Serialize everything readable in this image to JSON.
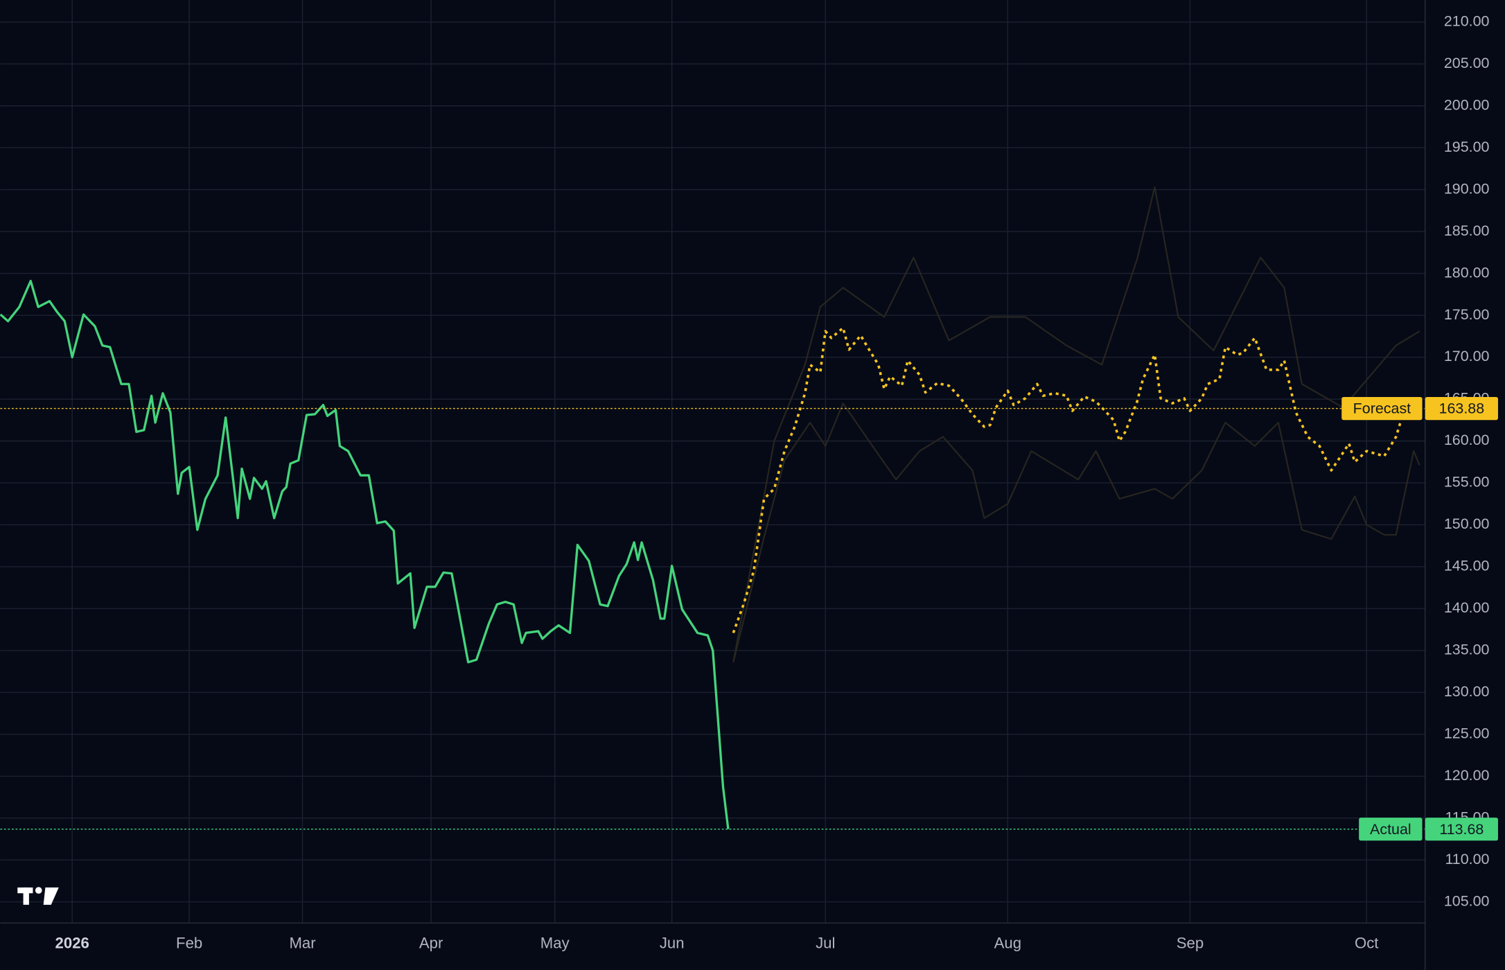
{
  "chart_data": {
    "type": "line",
    "xlim": [
      -19,
      283
    ],
    "ylim": [
      102.48,
      212.63
    ],
    "xticks": [
      {
        "value": 0,
        "label": "2026"
      },
      {
        "value": 31,
        "label": "Feb"
      },
      {
        "value": 59,
        "label": "Mar"
      },
      {
        "value": 90,
        "label": "Apr"
      },
      {
        "value": 120,
        "label": "May"
      },
      {
        "value": 151,
        "label": "Jun"
      },
      {
        "value": 181,
        "label": "Jul"
      },
      {
        "value": 212,
        "label": "Aug"
      },
      {
        "value": 243,
        "label": "Sep"
      },
      {
        "value": 273,
        "label": "Oct"
      }
    ],
    "yticks": [
      {
        "value": 105,
        "label": "105.00"
      },
      {
        "value": 110,
        "label": "110.00"
      },
      {
        "value": 115,
        "label": "115.00"
      },
      {
        "value": 120,
        "label": "120.00"
      },
      {
        "value": 125,
        "label": "125.00"
      },
      {
        "value": 130,
        "label": "130.00"
      },
      {
        "value": 135,
        "label": "135.00"
      },
      {
        "value": 140,
        "label": "140.00"
      },
      {
        "value": 145,
        "label": "145.00"
      },
      {
        "value": 150,
        "label": "150.00"
      },
      {
        "value": 155,
        "label": "155.00"
      },
      {
        "value": 160,
        "label": "160.00"
      },
      {
        "value": 165,
        "label": "165.00"
      },
      {
        "value": 170,
        "label": "170.00"
      },
      {
        "value": 175,
        "label": "175.00"
      },
      {
        "value": 180,
        "label": "180.00"
      },
      {
        "value": 185,
        "label": "185.00"
      },
      {
        "value": 190,
        "label": "190.00"
      },
      {
        "value": 195,
        "label": "195.00"
      },
      {
        "value": 200,
        "label": "200.00"
      },
      {
        "value": 205,
        "label": "205.00"
      },
      {
        "value": 210,
        "label": "210.00"
      }
    ],
    "grid": true,
    "series": [
      {
        "name": "Actual",
        "color": "#45d47c",
        "style": "solid",
        "x": [
          -19,
          -17,
          -14,
          -11,
          -9,
          -6,
          -4,
          -2,
          0,
          3,
          6,
          8,
          10,
          13,
          15,
          17,
          19,
          21,
          22,
          24,
          26,
          28,
          29,
          31,
          33,
          35,
          38,
          40,
          43,
          44,
          46,
          47,
          49,
          50,
          52,
          54,
          55,
          56,
          58,
          60,
          62,
          64,
          65,
          67,
          68,
          70,
          73,
          75,
          77,
          79,
          81,
          82,
          85,
          86,
          89,
          91,
          93,
          95,
          99,
          101,
          104,
          106,
          108,
          110,
          112,
          113,
          116,
          117,
          119,
          121,
          124,
          126,
          129,
          132,
          134,
          137,
          139,
          141,
          142,
          143,
          146,
          148,
          149,
          151,
          153,
          156,
          158,
          159,
          161,
          162
        ],
        "values": [
          175.1,
          174.3,
          176,
          179.1,
          176,
          176.7,
          175.4,
          174.3,
          170,
          175.1,
          173.7,
          171.4,
          171.2,
          166.8,
          166.8,
          161.1,
          161.3,
          165.4,
          162.2,
          165.7,
          163.4,
          153.7,
          156.2,
          156.9,
          149.4,
          153.1,
          155.9,
          162.8,
          150.8,
          156.7,
          153.1,
          155.6,
          154.3,
          155.2,
          150.8,
          154,
          154.5,
          157.3,
          157.7,
          163.1,
          163.2,
          164.3,
          163,
          163.7,
          159.4,
          158.8,
          155.9,
          155.9,
          150.2,
          150.4,
          149.3,
          143,
          144.2,
          137.7,
          142.6,
          142.6,
          144.3,
          144.2,
          133.6,
          133.9,
          138.2,
          140.5,
          140.8,
          140.5,
          135.9,
          137.1,
          137.3,
          136.4,
          137.3,
          138,
          137.1,
          147.6,
          145.7,
          140.5,
          140.3,
          143.9,
          145.3,
          147.9,
          145.8,
          147.9,
          143.4,
          138.8,
          138.8,
          145.1,
          139.9,
          137.1,
          136.8,
          135,
          118.7,
          113.68
        ]
      },
      {
        "name": "Forecast",
        "color": "#f7c41f",
        "style": "dotted",
        "x": [
          163,
          165,
          167,
          169,
          171,
          173,
          175,
          177,
          178,
          180,
          181,
          182,
          184,
          185,
          187,
          188,
          190,
          191,
          192,
          194,
          195,
          197,
          198,
          200,
          202,
          204,
          206,
          208,
          209,
          210,
          212,
          213,
          215,
          217,
          218,
          220,
          222,
          223,
          225,
          227,
          228,
          230,
          231,
          232,
          234,
          235,
          237,
          238,
          240,
          242,
          243,
          245,
          246,
          248,
          249,
          251,
          252,
          254,
          256,
          258,
          259,
          261,
          263,
          265,
          267,
          269,
          270,
          271,
          273,
          276,
          278,
          279,
          280
        ],
        "values": [
          137.1,
          140.5,
          144.5,
          153.1,
          154.3,
          158.8,
          161.7,
          165.7,
          169.1,
          168.2,
          173.1,
          172.3,
          173.5,
          170.9,
          172.6,
          171.4,
          169.1,
          166.2,
          167.7,
          166.6,
          169.6,
          167.9,
          165.8,
          166.9,
          166.6,
          165.1,
          163.2,
          161.7,
          161.9,
          164,
          166,
          164.3,
          165.1,
          166.8,
          165.4,
          165.7,
          165.4,
          163.6,
          165.3,
          164.7,
          164,
          162.5,
          160,
          161.1,
          164.7,
          167.4,
          170.3,
          165.1,
          164.5,
          165.1,
          163.6,
          165.1,
          166.8,
          167.4,
          171.2,
          170.3,
          170.5,
          172.3,
          168.5,
          168.5,
          169.6,
          163.4,
          160.5,
          159.4,
          156.5,
          158.6,
          159.7,
          157.5,
          158.8,
          158.2,
          160.5,
          162.8,
          163.88
        ]
      },
      {
        "color": "#2a2820",
        "style": "faint",
        "x": [
          163,
          171,
          177,
          180,
          184,
          191,
          196,
          202,
          209,
          215,
          222,
          228,
          234,
          237,
          241,
          247,
          255,
          259,
          262,
          269,
          278,
          282
        ],
        "values": [
          133.6,
          160,
          169.1,
          176,
          178.3,
          174.8,
          181.9,
          172,
          174.8,
          174.8,
          171.4,
          169.1,
          181.7,
          190.3,
          174.8,
          170.8,
          181.9,
          178.3,
          166.8,
          164,
          171.4,
          173.1
        ]
      },
      {
        "color": "#2a2820",
        "style": "faint",
        "x": [
          163,
          169,
          173,
          178,
          181,
          184,
          189,
          193,
          197,
          201,
          206,
          208,
          212,
          216,
          220,
          224,
          227,
          231,
          237,
          240,
          245,
          249,
          254,
          258,
          262,
          267,
          271,
          273,
          276,
          278,
          281,
          282
        ],
        "values": [
          133.6,
          148.5,
          157.7,
          162.2,
          159.4,
          164.5,
          159.4,
          155.4,
          158.8,
          160.5,
          156.5,
          150.8,
          152.5,
          158.8,
          157.1,
          155.4,
          158.8,
          153.1,
          154.3,
          153.1,
          156.5,
          162.2,
          159.4,
          162.2,
          149.4,
          148.3,
          153.4,
          150,
          148.8,
          148.8,
          158.8,
          157.1
        ]
      }
    ]
  }
}
